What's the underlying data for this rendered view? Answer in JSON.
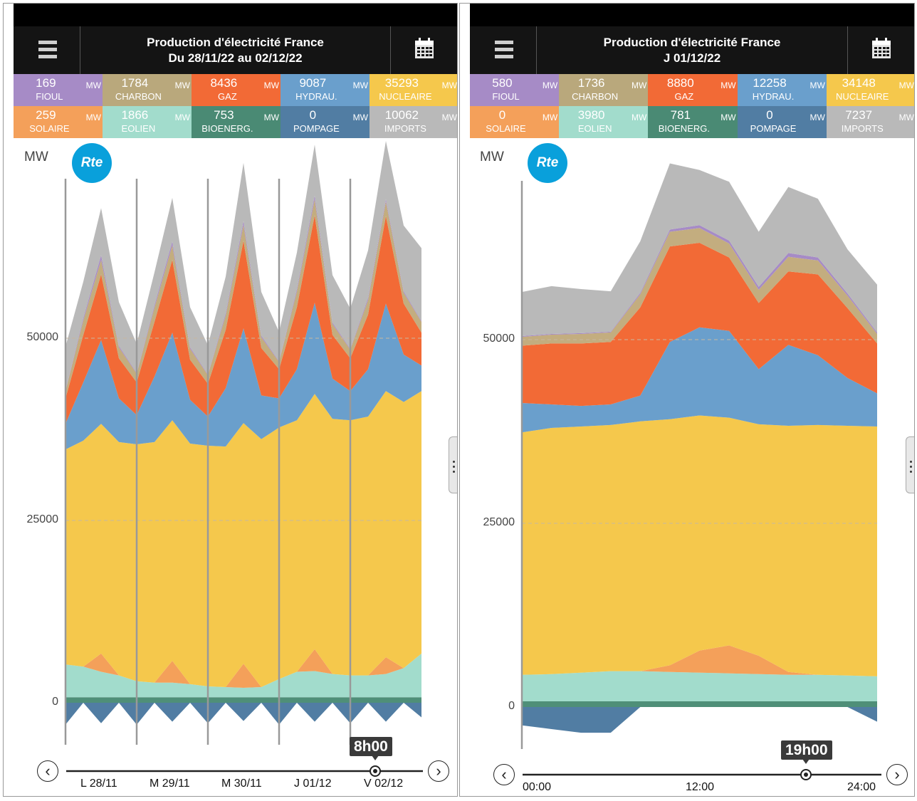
{
  "colors": {
    "nuclear": "#f5c84c",
    "hydro": "#6a9fcc",
    "gas": "#f26a36",
    "coal": "#c3ad7f",
    "oil": "#a68bc6",
    "imports": "#b9b9b9",
    "solar": "#f4a05a",
    "wind": "#a2dccc",
    "bio": "#4f8f78",
    "pumping": "#517da3"
  },
  "panels": [
    {
      "title_line1": "Production d'électricité France",
      "title_line2": "Du 28/11/22 au 02/12/22",
      "tiles": [
        {
          "value": "169",
          "unit": "MW",
          "label": "FIOUL",
          "color": "#a68bc6"
        },
        {
          "value": "1784",
          "unit": "MW",
          "label": "CHARBON",
          "color": "#b9a87c"
        },
        {
          "value": "8436",
          "unit": "MW",
          "label": "GAZ",
          "color": "#f26a36"
        },
        {
          "value": "9087",
          "unit": "MW",
          "label": "HYDRAU.",
          "color": "#6a9fcc"
        },
        {
          "value": "35293",
          "unit": "MW",
          "label": "NUCLEAIRE",
          "color": "#f5c84c"
        },
        {
          "value": "259",
          "unit": "MW",
          "label": "SOLAIRE",
          "color": "#f4a05a"
        },
        {
          "value": "1866",
          "unit": "MW",
          "label": "EOLIEN",
          "color": "#a2dccc"
        },
        {
          "value": "753",
          "unit": "MW",
          "label": "BIOENERG.",
          "color": "#4a8a74"
        },
        {
          "value": "0",
          "unit": "MW",
          "label": "POMPAGE",
          "color": "#517da3"
        },
        {
          "value": "10062",
          "unit": "MW",
          "label": "IMPORTS",
          "color": "#b9b9b9"
        }
      ],
      "axis_unit": "MW",
      "logo": "Rte",
      "time_badge": "8h00",
      "x_ticks": [
        "L 28/11",
        "M 29/11",
        "M 30/11",
        "J 01/12",
        "V 02/12"
      ],
      "prev_icon": "chevron-left-icon",
      "next_icon": "chevron-right-icon"
    },
    {
      "title_line1": "Production d'électricité France",
      "title_line2": "J 01/12/22",
      "tiles": [
        {
          "value": "580",
          "unit": "MW",
          "label": "FIOUL",
          "color": "#a68bc6"
        },
        {
          "value": "1736",
          "unit": "MW",
          "label": "CHARBON",
          "color": "#b9a87c"
        },
        {
          "value": "8880",
          "unit": "MW",
          "label": "GAZ",
          "color": "#f26a36"
        },
        {
          "value": "12258",
          "unit": "MW",
          "label": "HYDRAU.",
          "color": "#6a9fcc"
        },
        {
          "value": "34148",
          "unit": "MW",
          "label": "NUCLEAIRE",
          "color": "#f5c84c"
        },
        {
          "value": "0",
          "unit": "MW",
          "label": "SOLAIRE",
          "color": "#f4a05a"
        },
        {
          "value": "3980",
          "unit": "MW",
          "label": "EOLIEN",
          "color": "#a2dccc"
        },
        {
          "value": "781",
          "unit": "MW",
          "label": "BIOENERG.",
          "color": "#4a8a74"
        },
        {
          "value": "0",
          "unit": "MW",
          "label": "POMPAGE",
          "color": "#517da3"
        },
        {
          "value": "7237",
          "unit": "MW",
          "label": "IMPORTS",
          "color": "#b9b9b9"
        }
      ],
      "axis_unit": "MW",
      "logo": "Rte",
      "time_badge": "19h00",
      "x_ticks": [
        "00:00",
        "12:00",
        "24:00"
      ],
      "prev_icon": "chevron-left-icon",
      "next_icon": "chevron-right-icon"
    }
  ],
  "chart_data": [
    {
      "type": "area",
      "title": "",
      "ylabel": "MW",
      "ylim": [
        -5000,
        70000
      ],
      "yticks": [
        0,
        25000,
        50000
      ],
      "grid": "dashed at 25000 and 50000",
      "x_ticks": [
        "L 28/11",
        "M 29/11",
        "M 30/11",
        "J 01/12",
        "V 02/12"
      ],
      "x_hours": [
        0,
        6,
        12,
        18,
        24,
        30,
        36,
        42,
        48,
        54,
        60,
        66,
        72,
        78,
        84,
        90,
        96,
        102,
        108,
        114,
        120
      ],
      "stack_order": [
        "pumping",
        "bio",
        "wind",
        "solar",
        "nuclear",
        "hydro",
        "gas",
        "coal",
        "oil",
        "imports"
      ],
      "series": [
        {
          "name": "POMPAGE",
          "values": [
            -3000,
            0,
            -2800,
            0,
            -3000,
            0,
            -2600,
            0,
            -2800,
            0,
            -2500,
            0,
            -3000,
            0,
            -2600,
            0,
            -2800,
            0,
            -2600,
            0,
            -2000
          ]
        },
        {
          "name": "BIOENERG.",
          "values": [
            750,
            750,
            750,
            750,
            750,
            750,
            750,
            750,
            750,
            750,
            750,
            750,
            750,
            750,
            750,
            750,
            750,
            750,
            750,
            750,
            750
          ]
        },
        {
          "name": "EOLIEN",
          "values": [
            4500,
            4200,
            3500,
            3000,
            2200,
            2000,
            2000,
            1800,
            1500,
            1400,
            1300,
            1400,
            2500,
            3500,
            3600,
            3200,
            3000,
            3000,
            3200,
            4000,
            6000
          ]
        },
        {
          "name": "SOLAIRE",
          "values": [
            0,
            0,
            2500,
            0,
            0,
            0,
            3000,
            0,
            0,
            0,
            3300,
            0,
            0,
            0,
            3000,
            0,
            0,
            0,
            2300,
            0,
            0
          ]
        },
        {
          "name": "NUCLEAIRE",
          "values": [
            29500,
            31000,
            31500,
            32000,
            32500,
            33000,
            33000,
            33000,
            33000,
            33000,
            33000,
            34000,
            34500,
            34500,
            35000,
            35000,
            35000,
            35500,
            36500,
            36500,
            36000
          ]
        },
        {
          "name": "HYDRAU.",
          "values": [
            3500,
            8000,
            11500,
            6000,
            4000,
            9000,
            12000,
            6000,
            4000,
            8000,
            13000,
            6000,
            4000,
            7000,
            12500,
            5500,
            4000,
            6500,
            12000,
            6500,
            3500
          ]
        },
        {
          "name": "GAZ",
          "values": [
            3500,
            6500,
            9000,
            5500,
            4500,
            7500,
            10000,
            5500,
            4500,
            8000,
            12000,
            6500,
            4000,
            8500,
            12000,
            6000,
            4500,
            7500,
            12000,
            7000,
            4500
          ]
        },
        {
          "name": "CHARBON",
          "values": [
            1000,
            2000,
            2000,
            1500,
            1200,
            2000,
            2000,
            1500,
            1200,
            2000,
            2200,
            1500,
            1000,
            2200,
            2200,
            1500,
            1200,
            2000,
            2000,
            1500,
            1500
          ]
        },
        {
          "name": "FIOUL",
          "values": [
            100,
            300,
            600,
            200,
            100,
            300,
            500,
            200,
            100,
            300,
            500,
            200,
            100,
            300,
            500,
            200,
            100,
            300,
            300,
            200,
            100
          ]
        },
        {
          "name": "IMPORTS",
          "values": [
            6000,
            5000,
            6500,
            6000,
            4000,
            4500,
            6000,
            5500,
            4000,
            5000,
            8000,
            6000,
            4000,
            5000,
            7000,
            6500,
            5500,
            6500,
            8000,
            9000,
            10000
          ]
        }
      ]
    },
    {
      "type": "area",
      "title": "",
      "ylabel": "MW",
      "ylim": [
        -5000,
        70000
      ],
      "yticks": [
        0,
        25000,
        50000
      ],
      "grid": "dashed at 25000 and 50000",
      "x_ticks": [
        "00:00",
        "12:00",
        "24:00"
      ],
      "x_hours": [
        0,
        2,
        4,
        6,
        8,
        10,
        12,
        14,
        16,
        18,
        20,
        22,
        24
      ],
      "stack_order": [
        "pumping",
        "bio",
        "wind",
        "solar",
        "nuclear",
        "hydro",
        "gas",
        "coal",
        "oil",
        "imports"
      ],
      "series": [
        {
          "name": "POMPAGE",
          "values": [
            -2500,
            -3000,
            -3500,
            -3500,
            0,
            0,
            0,
            0,
            0,
            0,
            0,
            0,
            -2000
          ]
        },
        {
          "name": "BIOENERG.",
          "values": [
            780,
            780,
            780,
            780,
            780,
            780,
            780,
            780,
            780,
            780,
            780,
            780,
            780
          ]
        },
        {
          "name": "EOLIEN",
          "values": [
            3600,
            3700,
            3900,
            4100,
            4100,
            4000,
            3900,
            3800,
            3700,
            3600,
            3600,
            3500,
            3400
          ]
        },
        {
          "name": "SOLAIRE",
          "values": [
            0,
            0,
            0,
            0,
            0,
            900,
            3000,
            3800,
            2500,
            400,
            0,
            0,
            0
          ]
        },
        {
          "name": "NUCLEAIRE",
          "values": [
            33000,
            33500,
            33500,
            33500,
            34000,
            33500,
            32000,
            31000,
            31500,
            33500,
            34000,
            34000,
            34000
          ]
        },
        {
          "name": "HYDRAU.",
          "values": [
            4000,
            3200,
            2800,
            2800,
            3500,
            10500,
            12000,
            11800,
            7500,
            11000,
            9500,
            6500,
            4500
          ]
        },
        {
          "name": "GAZ",
          "values": [
            7800,
            8300,
            8500,
            8500,
            12000,
            13000,
            11500,
            10000,
            9000,
            10000,
            11000,
            9500,
            6800
          ]
        },
        {
          "name": "CHARBON",
          "values": [
            1200,
            1200,
            1300,
            1300,
            1800,
            2000,
            2000,
            1900,
            1800,
            2000,
            1900,
            1700,
            1300
          ]
        },
        {
          "name": "FIOUL",
          "values": [
            100,
            100,
            100,
            100,
            200,
            300,
            400,
            400,
            400,
            500,
            400,
            300,
            200
          ]
        },
        {
          "name": "IMPORTS",
          "values": [
            6000,
            6500,
            6000,
            5500,
            7000,
            9000,
            7500,
            8000,
            7500,
            9000,
            8000,
            6000,
            6500
          ]
        }
      ]
    }
  ]
}
